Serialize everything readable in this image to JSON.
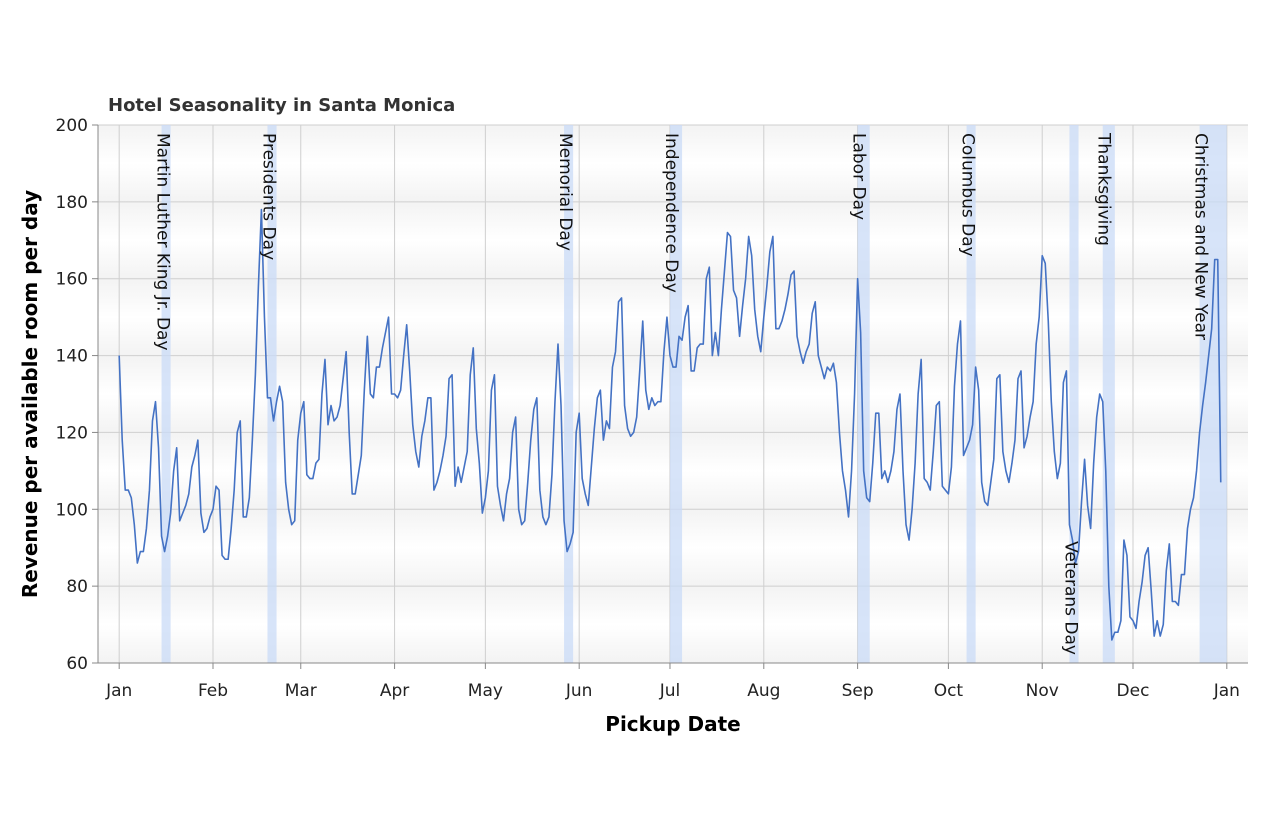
{
  "chart_data": {
    "type": "line",
    "title": "Hotel Seasonality in Santa Monica",
    "xlabel": "Pickup Date",
    "ylabel": "Revenue per available room per day",
    "ylim": [
      60,
      200
    ],
    "yticks": [
      60,
      80,
      100,
      120,
      140,
      160,
      180,
      200
    ],
    "xlim": [
      "2016-01-01",
      "2017-01-01"
    ],
    "xticks": [
      {
        "date": "2016-01-01",
        "label": "Jan"
      },
      {
        "date": "2016-02-01",
        "label": "Feb"
      },
      {
        "date": "2016-03-01",
        "label": "Mar"
      },
      {
        "date": "2016-04-01",
        "label": "Apr"
      },
      {
        "date": "2016-05-01",
        "label": "May"
      },
      {
        "date": "2016-06-01",
        "label": "Jun"
      },
      {
        "date": "2016-07-01",
        "label": "Jul"
      },
      {
        "date": "2016-08-01",
        "label": "Aug"
      },
      {
        "date": "2016-09-01",
        "label": "Sep"
      },
      {
        "date": "2016-10-01",
        "label": "Oct"
      },
      {
        "date": "2016-11-01",
        "label": "Nov"
      },
      {
        "date": "2016-12-01",
        "label": "Dec"
      },
      {
        "date": "2017-01-01",
        "label": "Jan"
      }
    ],
    "grid": true,
    "colors": {
      "line": "#4472c4",
      "holiday_band": "#c9dbf7",
      "band_stripe": "#f1f1f1"
    },
    "holidays": [
      {
        "name": "Martin Luther King Jr. Day",
        "start": "2016-01-15",
        "end": "2016-01-18",
        "label_side": "left",
        "label_top": true
      },
      {
        "name": "Presidents Day",
        "start": "2016-02-19",
        "end": "2016-02-22",
        "label_side": "left",
        "label_top": true
      },
      {
        "name": "Memorial Day",
        "start": "2016-05-27",
        "end": "2016-05-30",
        "label_side": "left",
        "label_top": true
      },
      {
        "name": "Independence Day",
        "start": "2016-07-01",
        "end": "2016-07-05",
        "label_side": "left",
        "label_top": true
      },
      {
        "name": "Labor Day",
        "start": "2016-09-01",
        "end": "2016-09-05",
        "label_side": "left",
        "label_top": true
      },
      {
        "name": "Columbus Day",
        "start": "2016-10-07",
        "end": "2016-10-10",
        "label_side": "left",
        "label_top": true
      },
      {
        "name": "Veterans Day",
        "start": "2016-11-10",
        "end": "2016-11-13",
        "label_side": "left",
        "label_top": false
      },
      {
        "name": "Thanksgiving",
        "start": "2016-11-21",
        "end": "2016-11-25",
        "label_side": "left",
        "label_top": true
      },
      {
        "name": "Christmas and New Year",
        "start": "2016-12-23",
        "end": "2017-01-01",
        "label_side": "left",
        "label_top": true
      }
    ],
    "series": [
      {
        "start": "2016-01-01",
        "step_days": 1,
        "values": [
          140,
          118,
          105,
          105,
          103,
          96,
          86,
          89,
          89,
          95,
          105,
          123,
          128,
          116,
          93,
          89,
          93,
          99,
          110,
          116,
          97,
          99,
          101,
          104,
          111,
          114,
          118,
          99,
          94,
          95,
          98,
          100,
          106,
          105,
          88,
          87,
          87,
          95,
          105,
          120,
          123,
          98,
          98,
          103,
          118,
          135,
          158,
          178,
          150,
          129,
          129,
          123,
          128,
          132,
          128,
          107,
          100,
          96,
          97,
          118,
          125,
          128,
          109,
          108,
          108,
          112,
          113,
          130,
          139,
          122,
          127,
          123,
          124,
          127,
          134,
          141,
          120,
          104,
          104,
          109,
          114,
          131,
          145,
          130,
          129,
          137,
          137,
          142,
          146,
          150,
          130,
          130,
          129,
          131,
          140,
          148,
          136,
          122,
          115,
          111,
          119,
          123,
          129,
          129,
          105,
          107,
          110,
          114,
          119,
          134,
          135,
          106,
          111,
          107,
          111,
          115,
          135,
          142,
          121,
          112,
          99,
          103,
          110,
          131,
          135,
          106,
          101,
          97,
          104,
          108,
          120,
          124,
          100,
          96,
          97,
          107,
          118,
          126,
          129,
          105,
          98,
          96,
          98,
          109,
          128,
          143,
          127,
          97,
          89,
          91,
          94,
          120,
          125,
          108,
          104,
          101,
          111,
          121,
          129,
          131,
          118,
          123,
          121,
          137,
          141,
          154,
          155,
          127,
          121,
          119,
          120,
          124,
          136,
          149,
          131,
          126,
          129,
          127,
          128,
          128,
          141,
          150,
          140,
          137,
          137,
          145,
          144,
          150,
          153,
          136,
          136,
          142,
          143,
          143,
          160,
          163,
          140,
          146,
          140,
          152,
          162,
          172,
          171,
          157,
          155,
          145,
          153,
          160,
          171,
          166,
          152,
          145,
          141,
          150,
          158,
          167,
          171,
          147,
          147,
          149,
          152,
          156,
          161,
          162,
          145,
          141,
          138,
          141,
          143,
          151,
          154,
          140,
          137,
          134,
          137,
          136,
          138,
          133,
          120,
          110,
          105,
          98,
          110,
          130,
          160,
          146,
          110,
          103,
          102,
          112,
          125,
          125,
          108,
          110,
          107,
          110,
          115,
          126,
          130,
          110,
          96,
          92,
          100,
          112,
          130,
          139,
          108,
          107,
          105,
          115,
          127,
          128,
          106,
          105,
          104,
          111,
          132,
          143,
          149,
          114,
          116,
          118,
          122,
          137,
          131,
          107,
          102,
          101,
          107,
          113,
          134,
          135,
          115,
          110,
          107,
          112,
          118,
          134,
          136,
          116,
          119,
          124,
          128,
          143,
          150,
          166,
          164,
          149,
          128,
          115,
          108,
          112,
          133,
          136,
          96,
          92,
          86,
          89,
          102,
          113,
          101,
          95,
          112,
          124,
          130,
          128,
          110,
          80,
          66,
          68,
          68,
          71,
          92,
          88,
          72,
          71,
          69,
          76,
          81,
          88,
          90,
          79,
          67,
          71,
          67,
          70,
          84,
          91,
          76,
          76,
          75,
          83,
          83,
          95,
          100,
          103,
          110,
          120,
          127,
          133,
          140,
          147,
          165,
          165,
          107
        ]
      }
    ]
  }
}
